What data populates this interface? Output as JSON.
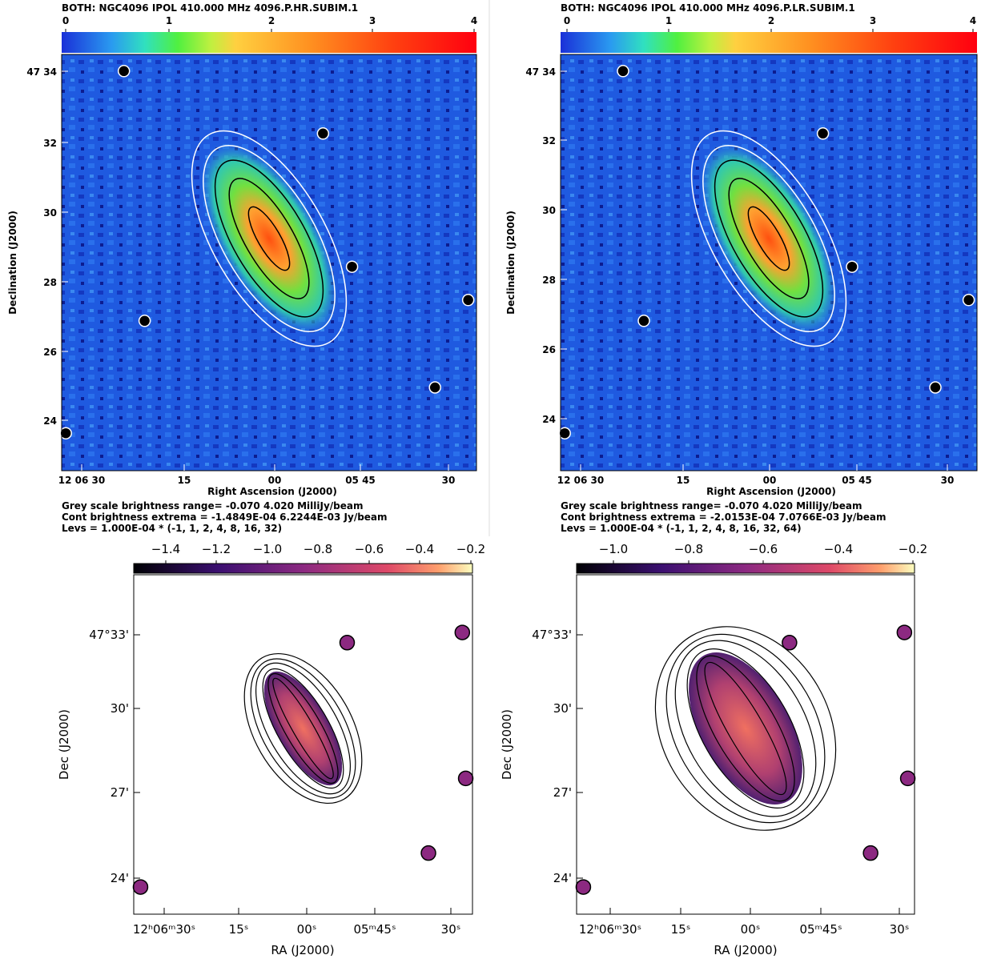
{
  "panels": [
    {
      "header": "BOTH: NGC4096  IPOL  410.000 MHz  4096.P.HR.SUBIM.1",
      "colorbar_ticks": [
        "0",
        "1",
        "2",
        "3",
        "4"
      ],
      "y_ticks": [
        "47 34",
        "32",
        "30",
        "28",
        "26",
        "24"
      ],
      "x_ticks": [
        "12 06 30",
        "15",
        "00",
        "05 45",
        "30"
      ],
      "x_label": "Right Ascension (J2000)",
      "y_label": "Declination (J2000)",
      "notes": [
        "Grey scale brightness range= -0.070 4.020 MilliJy/beam",
        "Cont brightness extrema = -1.4849E-04 6.2244E-03 Jy/beam",
        "Levs = 1.000E-04 * (-1, 1, 2, 4, 8, 16, 32)"
      ]
    },
    {
      "header": "BOTH: NGC4096  IPOL  410.000 MHz  4096.P.LR.SUBIM.1",
      "colorbar_ticks": [
        "0",
        "1",
        "2",
        "3",
        "4"
      ],
      "y_ticks": [
        "47 34",
        "32",
        "30",
        "28",
        "26",
        "24"
      ],
      "x_ticks": [
        "12 06 30",
        "15",
        "00",
        "05 45",
        "30"
      ],
      "x_label": "Right Ascension (J2000)",
      "y_label": "Declination (J2000)",
      "notes": [
        "Grey scale brightness range= -0.070 4.020 MilliJy/beam",
        "Cont brightness extrema = -2.0153E-04 7.0766E-03 Jy/beam",
        "Levs = 1.000E-04 * (-1, 1, 2, 4, 8, 16, 32, 64)"
      ]
    },
    {
      "colorbar_ticks": [
        "−1.4",
        "−1.2",
        "−1.0",
        "−0.8",
        "−0.6",
        "−0.4",
        "−0.2"
      ],
      "y_ticks": [
        "47°33'",
        "30'",
        "27'",
        "24'"
      ],
      "x_ticks": [
        "12ʰ06ᵐ30ˢ",
        "15ˢ",
        "00ˢ",
        "05ᵐ45ˢ",
        "30ˢ"
      ],
      "x_label": "RA (J2000)",
      "y_label": "Dec (J2000)"
    },
    {
      "colorbar_ticks": [
        "−1.0",
        "−0.8",
        "−0.6",
        "−0.4",
        "−0.2"
      ],
      "y_ticks": [
        "47°33'",
        "30'",
        "27'",
        "24'"
      ],
      "x_ticks": [
        "12ʰ06ᵐ30ˢ",
        "15ˢ",
        "00ˢ",
        "05ᵐ45ˢ",
        "30ˢ"
      ],
      "x_label": "RA (J2000)",
      "y_label": "Dec (J2000)"
    }
  ]
}
